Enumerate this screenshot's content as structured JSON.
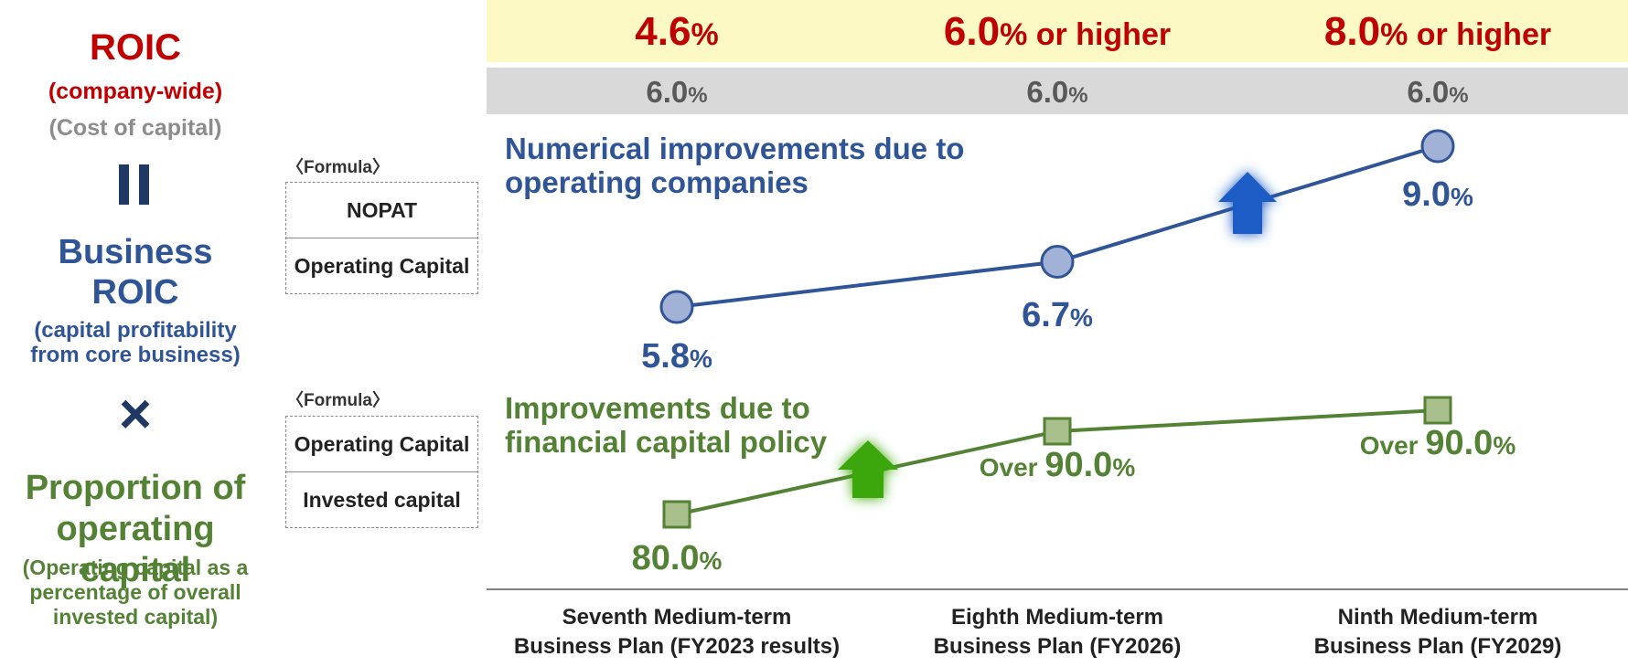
{
  "left": {
    "roic_title": "ROIC",
    "roic_sub": "(company-wide)",
    "cost_label": "(Cost of capital)",
    "equals_symbol": "=",
    "business_roic_line1": "Business",
    "business_roic_line2": "ROIC",
    "business_roic_sub1": "(capital profitability",
    "business_roic_sub2": "from core business)",
    "times_symbol": "×",
    "proportion_line1": "Proportion of",
    "proportion_line2": "operating capital",
    "proportion_sub1": "(Operating capital as a",
    "proportion_sub2": "percentage of overall",
    "proportion_sub3": "invested capital)"
  },
  "formulas": [
    {
      "label": "〈Formula〉",
      "numerator": "NOPAT",
      "denominator": "Operating Capital"
    },
    {
      "label": "〈Formula〉",
      "numerator": "Operating Capital",
      "denominator": "Invested capital"
    }
  ],
  "targets": [
    {
      "value": "4.6",
      "suffix": "%"
    },
    {
      "value": "6.0",
      "suffix": "% or higher"
    },
    {
      "value": "8.0",
      "suffix": "% or higher"
    }
  ],
  "cost_of_capital": [
    {
      "value": "6.0",
      "suffix": "%"
    },
    {
      "value": "6.0",
      "suffix": "%"
    },
    {
      "value": "6.0",
      "suffix": "%"
    }
  ],
  "colors": {
    "red": "#c00000",
    "blue": "#2f5597",
    "blue_marker": "#a2b1d6",
    "green": "#548235",
    "green_marker": "#a9c08d",
    "arrow_blue": "#1f5bc4",
    "arrow_green": "#3aa70a",
    "target_band": "#fcf9c4",
    "cost_band": "#d9d9d9"
  },
  "chart_data": {
    "type": "line",
    "categories": [
      [
        "Seventh Medium-term",
        "Business Plan (FY2023 results)"
      ],
      [
        "Eighth Medium-term",
        "Business Plan (FY2026)"
      ],
      [
        "Ninth Medium-term",
        "Business Plan (FY2029)"
      ]
    ],
    "series": [
      {
        "annotation": [
          "Numerical improvements due to",
          "operating companies"
        ],
        "marker": "circle",
        "values": [
          5.8,
          6.7,
          9.0
        ],
        "labels": [
          {
            "prefix": "",
            "value": "5.8",
            "unit": "%"
          },
          {
            "prefix": "",
            "value": "6.7",
            "unit": "%"
          },
          {
            "prefix": "",
            "value": "9.0",
            "unit": "%"
          }
        ]
      },
      {
        "annotation": [
          "Improvements due to",
          "financial capital policy"
        ],
        "marker": "square",
        "values": [
          80.0,
          90.0,
          90.0
        ],
        "labels": [
          {
            "prefix": "",
            "value": "80.0",
            "unit": "%"
          },
          {
            "prefix": "Over ",
            "value": "90.0",
            "unit": "%"
          },
          {
            "prefix": "Over ",
            "value": "90.0",
            "unit": "%"
          }
        ]
      }
    ]
  }
}
